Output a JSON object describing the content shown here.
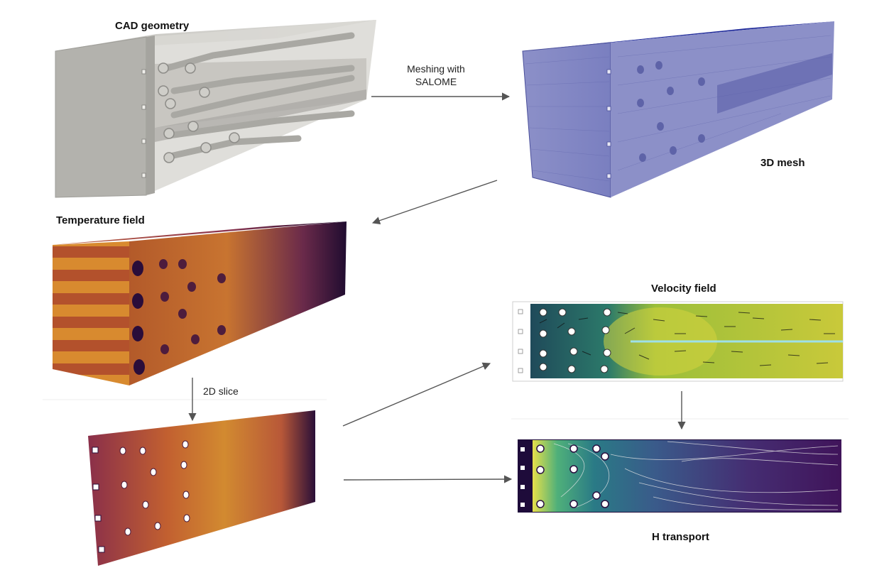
{
  "labels": {
    "cad_geometry": "CAD geometry",
    "meshing": "Meshing with\nSALOME",
    "mesh_3d": "3D mesh",
    "temperature_field": "Temperature field",
    "slice_2d": "2D slice",
    "velocity_field": "Velocity field",
    "h_transport": "H transport"
  },
  "colors": {
    "cad_gray": "#b9b8b3",
    "mesh_blue": "#6a6fb8",
    "inferno_dark": "#1a0a2e",
    "inferno_orange": "#d9862a",
    "viridis_yellow": "#cdd43a",
    "viridis_purple": "#44125a",
    "arrow": "#555555"
  }
}
